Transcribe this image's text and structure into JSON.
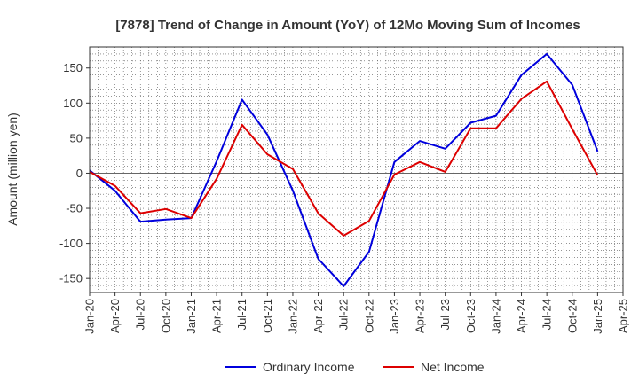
{
  "chart_data": {
    "type": "line",
    "title": "[7878]  Trend of Change in Amount (YoY) of 12Mo Moving Sum of Incomes",
    "ylabel": "Amount (million yen)",
    "xlabel": "",
    "ylim": [
      -170,
      180
    ],
    "yticks": [
      -150,
      -100,
      -50,
      0,
      50,
      100,
      150
    ],
    "x_tick_labels": [
      "Jan-20",
      "Apr-20",
      "Jul-20",
      "Oct-20",
      "Jan-21",
      "Apr-21",
      "Jul-21",
      "Oct-21",
      "Jan-22",
      "Apr-22",
      "Jul-22",
      "Oct-22",
      "Jan-23",
      "Apr-23",
      "Jul-23",
      "Oct-23",
      "Jan-24",
      "Apr-24",
      "Jul-24",
      "Oct-24",
      "Jan-25",
      "Apr-25"
    ],
    "x": [
      "Jan-20",
      "Apr-20",
      "Jul-20",
      "Oct-20",
      "Jan-21",
      "Apr-21",
      "Jul-21",
      "Oct-21",
      "Jan-22",
      "Apr-22",
      "Jul-22",
      "Oct-22",
      "Jan-23",
      "Apr-23",
      "Jul-23",
      "Oct-23",
      "Jan-24",
      "Apr-24",
      "Jul-24",
      "Oct-24",
      "Jan-25"
    ],
    "grid": true,
    "legend_position": "bottom",
    "series": [
      {
        "name": "Ordinary Income",
        "color": "#0000dd",
        "values": [
          4,
          -25,
          -69,
          -66,
          -64,
          17,
          105,
          55,
          -25,
          -122,
          -161,
          -112,
          16,
          46,
          35,
          72,
          82,
          140,
          170,
          126,
          31
        ]
      },
      {
        "name": "Net Income",
        "color": "#dd0000",
        "values": [
          2,
          -18,
          -57,
          -51,
          -64,
          -8,
          69,
          27,
          6,
          -57,
          -89,
          -68,
          -2,
          16,
          2,
          64,
          64,
          106,
          131,
          63,
          -3
        ]
      }
    ]
  }
}
